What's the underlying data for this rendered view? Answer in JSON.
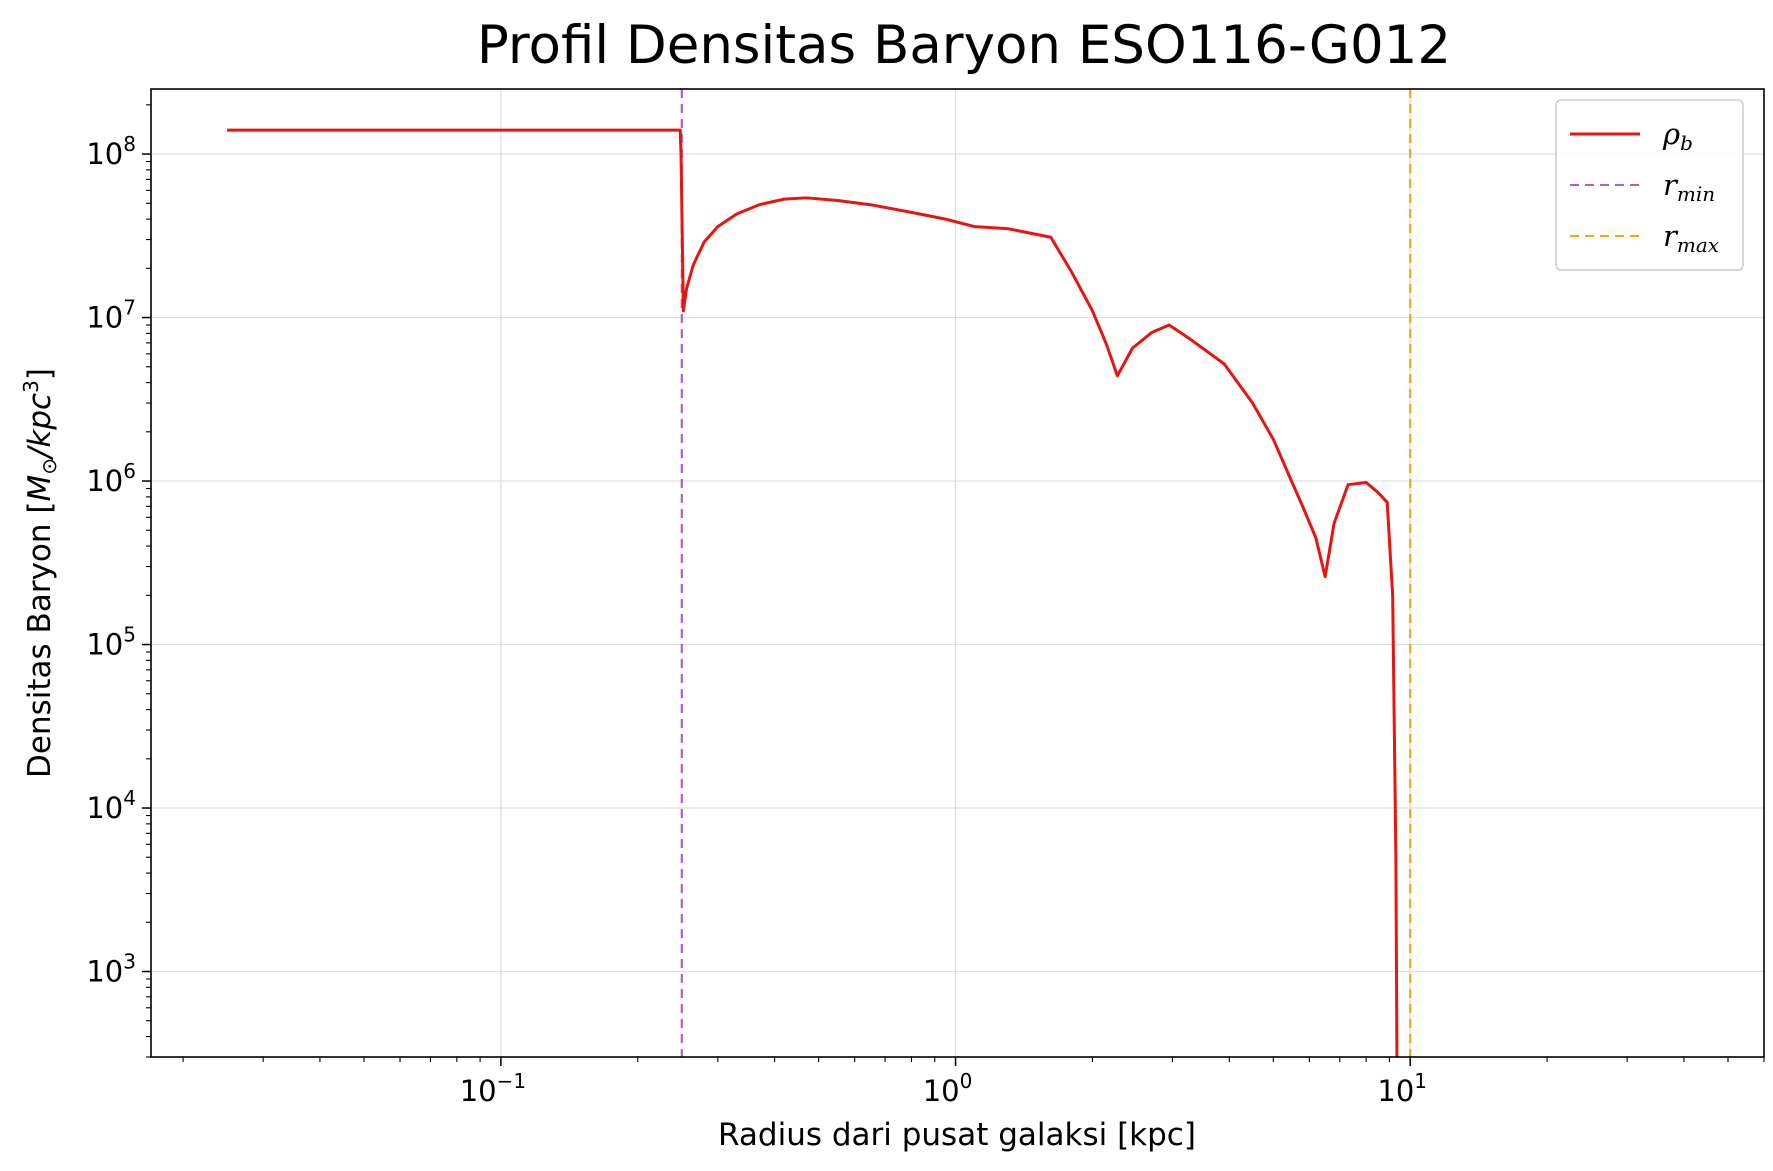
{
  "chart_data": {
    "type": "line",
    "title": "Profil Densitas Baryon ESO116-G012",
    "xlabel": "Radius dari pusat galaksi [kpc]",
    "ylabel": {
      "prefix": "Densitas Baryon [",
      "m": "M",
      "sun": "⊙",
      "slash": "/kpc",
      "exp": "3",
      "suffix": "]"
    },
    "x_scale": "log",
    "y_scale": "log",
    "xlim": [
      0.017,
      60
    ],
    "ylim": [
      300,
      250000000
    ],
    "x_ticks": [
      {
        "base": "10",
        "exp": "−1",
        "value": 0.1
      },
      {
        "base": "10",
        "exp": "0",
        "value": 1
      },
      {
        "base": "10",
        "exp": "1",
        "value": 10
      }
    ],
    "y_ticks": [
      {
        "base": "10",
        "exp": "3",
        "value": 1000
      },
      {
        "base": "10",
        "exp": "4",
        "value": 10000
      },
      {
        "base": "10",
        "exp": "5",
        "value": 100000
      },
      {
        "base": "10",
        "exp": "6",
        "value": 1000000
      },
      {
        "base": "10",
        "exp": "7",
        "value": 10000000
      },
      {
        "base": "10",
        "exp": "8",
        "value": 100000000
      }
    ],
    "grid": true,
    "legend_position": "top-right",
    "series": [
      {
        "name": "ρ",
        "sub": "b",
        "color": "#e8140f",
        "style": "solid",
        "x": [
          0.025,
          0.1,
          0.2,
          0.248,
          0.249,
          0.252,
          0.256,
          0.265,
          0.28,
          0.3,
          0.33,
          0.37,
          0.42,
          0.47,
          0.55,
          0.65,
          0.8,
          0.95,
          1.1,
          1.3,
          1.62,
          1.8,
          2.0,
          2.15,
          2.27,
          2.45,
          2.7,
          2.95,
          3.3,
          3.9,
          4.5,
          5.0,
          5.4,
          5.8,
          6.2,
          6.5,
          6.8,
          7.3,
          8.0,
          8.5,
          8.9,
          9.15,
          9.3,
          9.35
        ],
        "y": [
          140000000,
          140000000,
          140000000,
          140000000,
          100000000,
          11000000,
          15000000,
          21000000,
          29000000,
          36000000,
          43000000,
          49000000,
          53000000,
          54000000,
          52000000,
          49000000,
          44000000,
          40000000,
          36000000,
          35000000,
          31000000,
          19000000,
          11000000,
          6800000,
          4400000,
          6500000,
          8100000,
          9000000,
          7300000,
          5200000,
          3000000,
          1800000,
          1100000,
          700000,
          450000,
          260000,
          550000,
          950000,
          980000,
          850000,
          740000,
          200000,
          5000,
          300
        ]
      },
      {
        "name": "r",
        "sub": "min",
        "color": "#b45ad6",
        "style": "dashed",
        "vline_x": 0.25
      },
      {
        "name": "r",
        "sub": "max",
        "color": "#ffa20f",
        "style": "dashed",
        "vline_x": 10
      }
    ]
  }
}
